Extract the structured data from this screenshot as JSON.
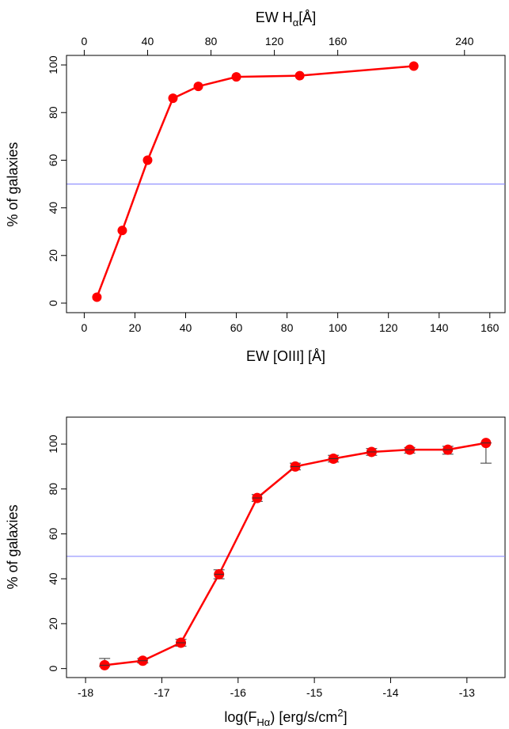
{
  "chart_data": [
    {
      "type": "line",
      "x_label_main": "EW [OIII] [",
      "x_label_unit": "Å",
      "x_label_close": "]",
      "x_top_label_main": "EW H",
      "x_top_label_sub": "α",
      "x_top_label_unit": "[Å]",
      "ylabel": "% of galaxies",
      "xlim": [
        -7,
        166
      ],
      "ylim": [
        -4,
        104
      ],
      "x_ticks": [
        0,
        20,
        40,
        60,
        80,
        100,
        120,
        140,
        160
      ],
      "x_top_ticks": [
        0,
        40,
        80,
        120,
        160,
        240
      ],
      "y_ticks": [
        0,
        20,
        40,
        60,
        80,
        100
      ],
      "reference_y": 50,
      "colors": {
        "series": "#ff0000",
        "reference": "#7f7fff"
      },
      "series": [
        {
          "x": [
            5,
            15,
            25,
            35,
            45,
            60,
            85,
            130
          ],
          "y": [
            2.5,
            30.5,
            60,
            86,
            91,
            95,
            95.5,
            99.5
          ]
        }
      ]
    },
    {
      "type": "line",
      "xlabel_main": "log(F",
      "xlabel_sub": "Hα",
      "xlabel_rest": ") [erg/s/cm",
      "xlabel_sup": "2",
      "xlabel_close": "]",
      "ylabel": "% of galaxies",
      "xlim": [
        -18.25,
        -12.5
      ],
      "ylim": [
        -4,
        112
      ],
      "x_ticks": [
        -18,
        -17,
        -16,
        -15,
        -14,
        -13
      ],
      "y_ticks": [
        0,
        20,
        40,
        60,
        80,
        100
      ],
      "reference_y": 50,
      "colors": {
        "series": "#ff0000",
        "reference": "#7f7fff",
        "error_bars": "#333333"
      },
      "series": [
        {
          "x": [
            -17.75,
            -17.25,
            -16.75,
            -16.25,
            -15.75,
            -15.25,
            -14.75,
            -14.25,
            -13.75,
            -13.25,
            -12.75
          ],
          "y": [
            1.5,
            3.5,
            11.5,
            42,
            76,
            90,
            93.5,
            96.5,
            97.5,
            97.5,
            100.5
          ],
          "err_low": [
            0.5,
            1,
            1.5,
            2,
            1.5,
            1.5,
            1.5,
            1.5,
            1.5,
            2,
            9
          ],
          "err_high": [
            3,
            1,
            1.5,
            2,
            1.5,
            1.5,
            1.5,
            1.5,
            1,
            1.5,
            0
          ]
        }
      ]
    }
  ]
}
